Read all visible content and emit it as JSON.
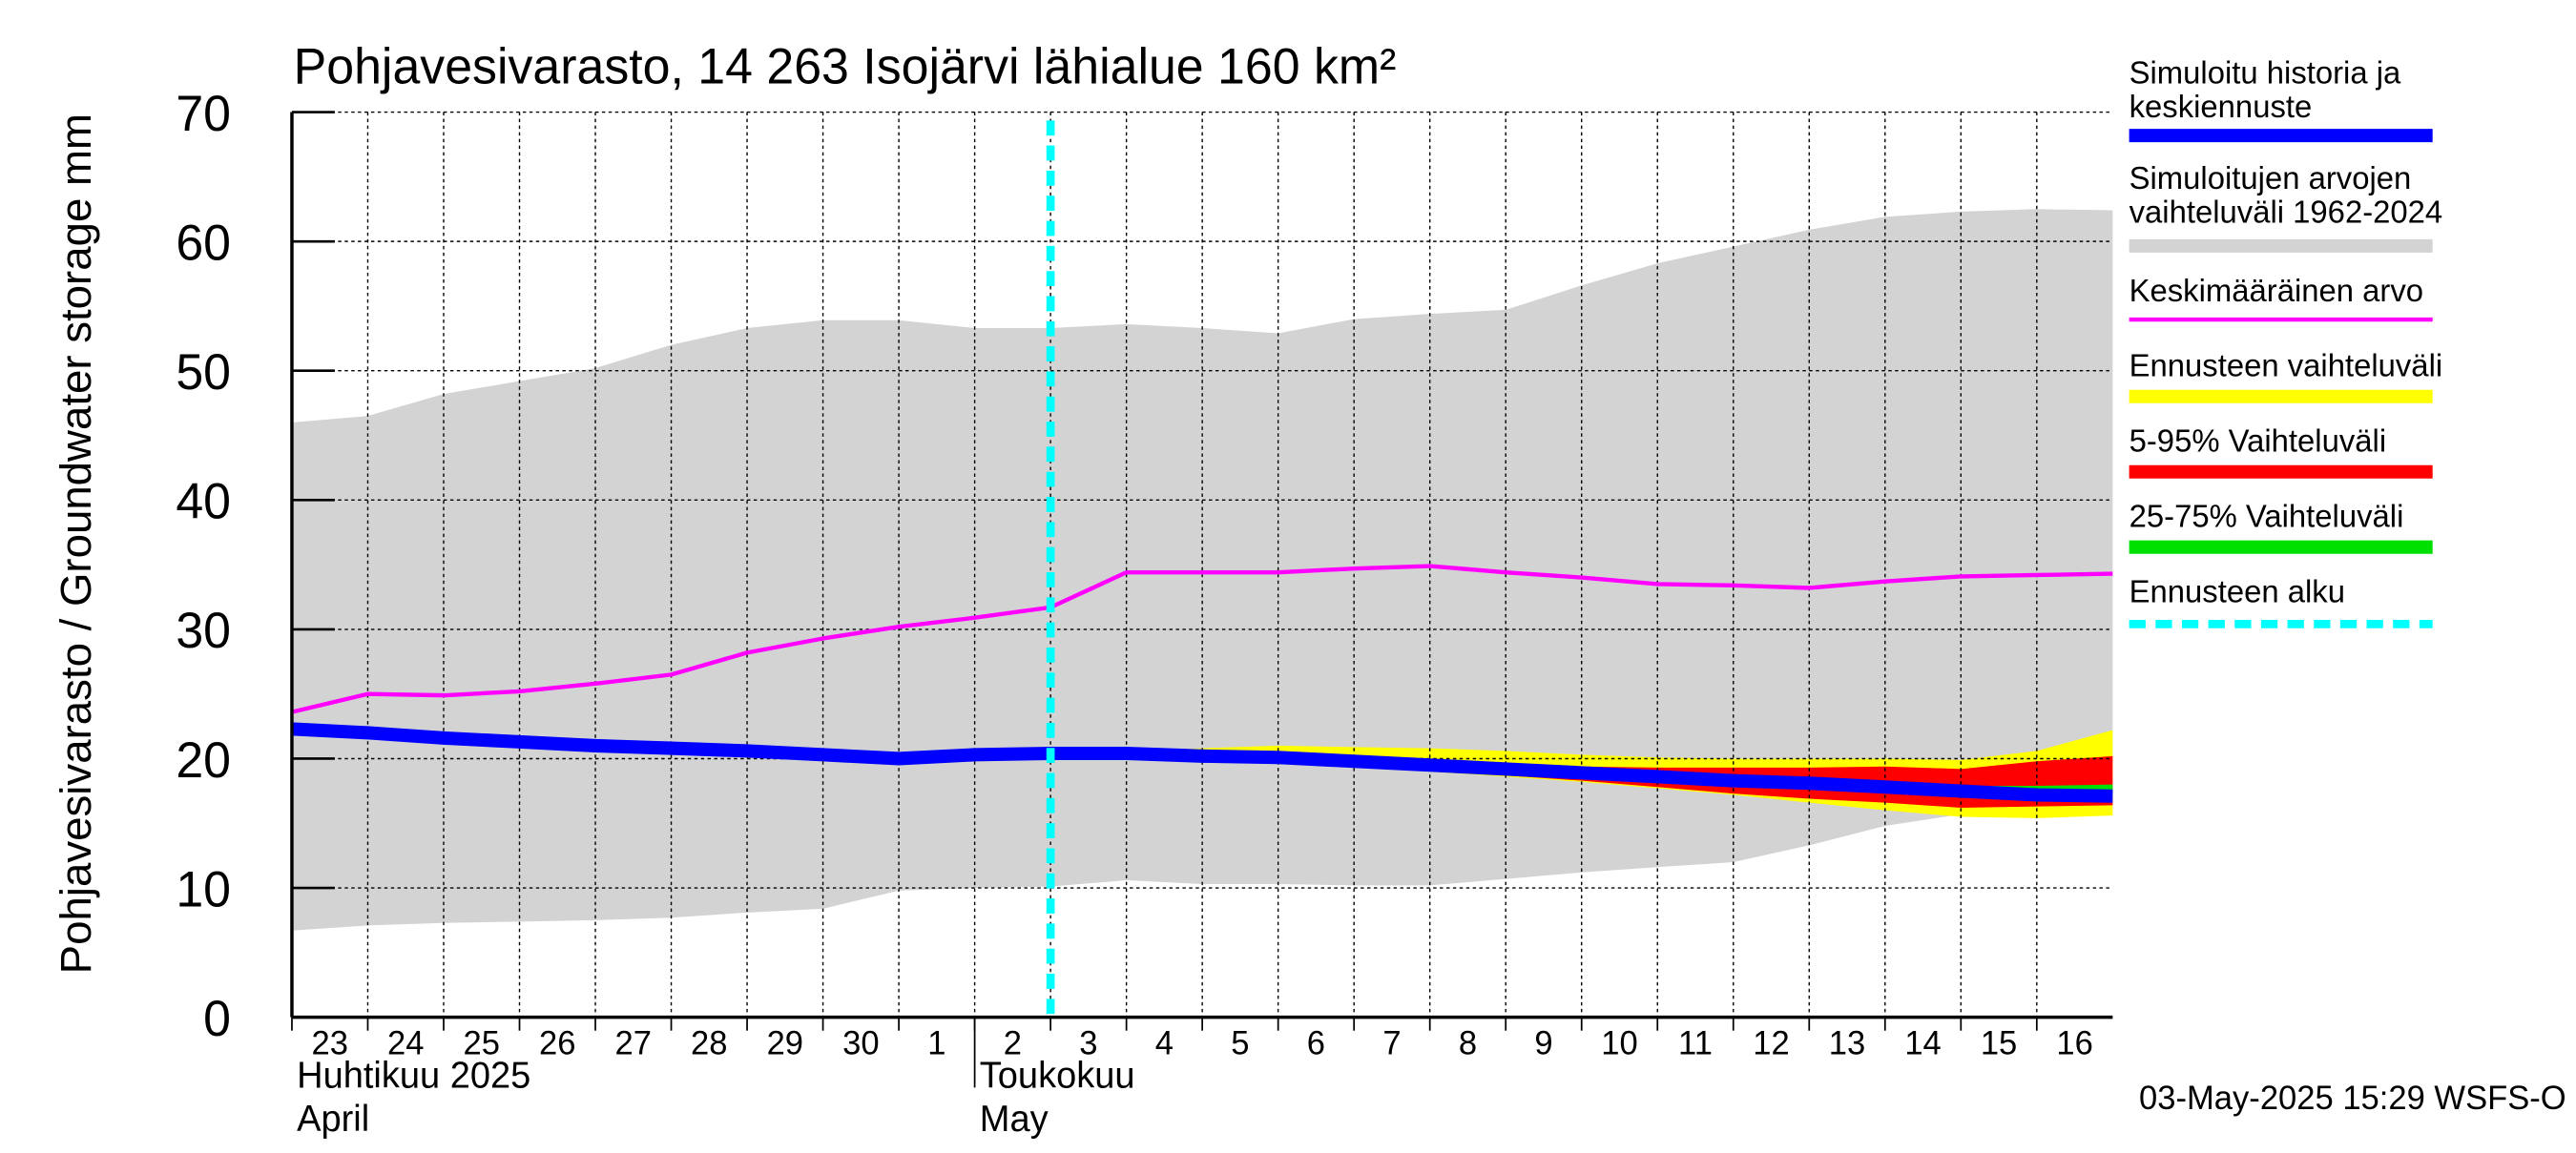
{
  "chart_data": {
    "type": "area",
    "title": "Pohjavesivarasto, 14 263 Isojärvi lähialue 160 km²",
    "ylabel": "Pohjavesivarasto / Groundwater storage   mm",
    "ylim": [
      0,
      70
    ],
    "yticks": [
      0,
      10,
      20,
      30,
      40,
      50,
      60,
      70
    ],
    "grid": true,
    "legend_position": "right",
    "x_dates": [
      "2025-04-23",
      "2025-04-24",
      "2025-04-25",
      "2025-04-26",
      "2025-04-27",
      "2025-04-28",
      "2025-04-29",
      "2025-04-30",
      "2025-05-01",
      "2025-05-02",
      "2025-05-03",
      "2025-05-04",
      "2025-05-05",
      "2025-05-06",
      "2025-05-07",
      "2025-05-08",
      "2025-05-09",
      "2025-05-10",
      "2025-05-11",
      "2025-05-12",
      "2025-05-13",
      "2025-05-14",
      "2025-05-15",
      "2025-05-16",
      "2025-05-17"
    ],
    "x_tick_labels": [
      "23",
      "24",
      "25",
      "26",
      "27",
      "28",
      "29",
      "30",
      "1",
      "2",
      "3",
      "4",
      "5",
      "6",
      "7",
      "8",
      "9",
      "10",
      "11",
      "12",
      "13",
      "14",
      "15",
      "16"
    ],
    "month_labels": [
      {
        "line1": "Huhtikuu  2025",
        "line2": "April",
        "start": "2025-04-23"
      },
      {
        "line1": "Toukokuu",
        "line2": "May",
        "start": "2025-05-02"
      }
    ],
    "forecast_start": "2025-05-03",
    "series": [
      {
        "name": "Simuloitujen arvojen vaihteluväli 1962-2024",
        "kind": "band",
        "color": "#d3d3d3",
        "x": [
          "2025-04-23",
          "2025-04-24",
          "2025-04-25",
          "2025-04-26",
          "2025-04-27",
          "2025-04-28",
          "2025-04-29",
          "2025-04-30",
          "2025-05-01",
          "2025-05-02",
          "2025-05-03",
          "2025-05-04",
          "2025-05-05",
          "2025-05-06",
          "2025-05-07",
          "2025-05-08",
          "2025-05-09",
          "2025-05-10",
          "2025-05-11",
          "2025-05-12",
          "2025-05-13",
          "2025-05-14",
          "2025-05-15",
          "2025-05-16",
          "2025-05-17"
        ],
        "upper": [
          46.0,
          46.5,
          48.2,
          49.2,
          50.2,
          52.0,
          53.3,
          53.9,
          53.9,
          53.3,
          53.3,
          53.6,
          53.3,
          52.9,
          54.0,
          54.4,
          54.7,
          56.6,
          58.3,
          59.6,
          60.9,
          61.9,
          62.3,
          62.5,
          62.4
        ],
        "lower": [
          6.7,
          7.1,
          7.3,
          7.4,
          7.5,
          7.7,
          8.1,
          8.4,
          9.8,
          10.0,
          10.1,
          10.6,
          10.3,
          10.3,
          10.2,
          10.2,
          10.7,
          11.2,
          11.6,
          12.0,
          13.3,
          14.8,
          15.7,
          16.0,
          16.2
        ]
      },
      {
        "name": "Ennusteen vaihteluväli",
        "kind": "band",
        "color": "#ffff00",
        "x": [
          "2025-05-03",
          "2025-05-04",
          "2025-05-05",
          "2025-05-06",
          "2025-05-07",
          "2025-05-08",
          "2025-05-09",
          "2025-05-10",
          "2025-05-11",
          "2025-05-12",
          "2025-05-13",
          "2025-05-14",
          "2025-05-15",
          "2025-05-16",
          "2025-05-17"
        ],
        "upper": [
          20.5,
          20.6,
          20.8,
          21.0,
          20.9,
          20.8,
          20.6,
          20.3,
          20.1,
          20.0,
          20.0,
          20.0,
          19.9,
          20.6,
          22.2
        ],
        "lower": [
          20.4,
          20.3,
          20.0,
          19.8,
          19.4,
          19.0,
          18.6,
          18.2,
          17.7,
          17.2,
          16.6,
          16.0,
          15.5,
          15.4,
          15.6
        ]
      },
      {
        "name": "5-95% Vaihteluväli",
        "kind": "band",
        "color": "#ff0000",
        "x": [
          "2025-05-03",
          "2025-05-04",
          "2025-05-05",
          "2025-05-06",
          "2025-05-07",
          "2025-05-08",
          "2025-05-09",
          "2025-05-10",
          "2025-05-11",
          "2025-05-12",
          "2025-05-13",
          "2025-05-14",
          "2025-05-15",
          "2025-05-16",
          "2025-05-17"
        ],
        "upper": [
          20.4,
          20.4,
          20.3,
          20.2,
          20.0,
          19.8,
          19.6,
          19.4,
          19.3,
          19.3,
          19.3,
          19.4,
          19.2,
          19.8,
          20.2
        ],
        "lower": [
          20.4,
          20.3,
          20.1,
          19.8,
          19.5,
          19.1,
          18.7,
          18.3,
          17.8,
          17.3,
          16.9,
          16.6,
          16.2,
          16.3,
          16.4
        ]
      },
      {
        "name": "25-75% Vaihteluväli",
        "kind": "band",
        "color": "#00e000",
        "x": [
          "2025-05-03",
          "2025-05-04",
          "2025-05-05",
          "2025-05-06",
          "2025-05-07",
          "2025-05-08",
          "2025-05-09",
          "2025-05-10",
          "2025-05-11",
          "2025-05-12",
          "2025-05-13",
          "2025-05-14",
          "2025-05-15",
          "2025-05-16",
          "2025-05-17"
        ],
        "upper": [
          20.4,
          20.4,
          20.2,
          20.1,
          19.9,
          19.6,
          19.3,
          19.0,
          18.7,
          18.5,
          18.3,
          18.1,
          17.9,
          17.9,
          18.0
        ],
        "lower": [
          20.4,
          20.3,
          20.1,
          19.9,
          19.6,
          19.3,
          19.0,
          18.7,
          18.4,
          18.1,
          17.9,
          17.6,
          17.3,
          17.1,
          17.1
        ]
      },
      {
        "name": "Keskimääräinen arvo",
        "kind": "line",
        "color": "#ff00ff",
        "width": 2.5,
        "x": [
          "2025-04-23",
          "2025-04-24",
          "2025-04-25",
          "2025-04-26",
          "2025-04-27",
          "2025-04-28",
          "2025-04-29",
          "2025-04-30",
          "2025-05-01",
          "2025-05-02",
          "2025-05-03",
          "2025-05-04",
          "2025-05-05",
          "2025-05-06",
          "2025-05-07",
          "2025-05-08",
          "2025-05-09",
          "2025-05-10",
          "2025-05-11",
          "2025-05-12",
          "2025-05-13",
          "2025-05-14",
          "2025-05-15",
          "2025-05-16",
          "2025-05-17"
        ],
        "values": [
          23.6,
          25.0,
          24.9,
          25.2,
          25.8,
          26.5,
          28.2,
          29.3,
          30.2,
          30.9,
          31.7,
          34.4,
          34.4,
          34.4,
          34.7,
          34.9,
          34.4,
          34.0,
          33.5,
          33.4,
          33.2,
          33.7,
          34.1,
          34.2,
          34.3
        ]
      },
      {
        "name": "Simuloitu historia ja keskiennuste",
        "kind": "line",
        "color": "#0000ff",
        "width": 8,
        "x": [
          "2025-04-23",
          "2025-04-24",
          "2025-04-25",
          "2025-04-26",
          "2025-04-27",
          "2025-04-28",
          "2025-04-29",
          "2025-04-30",
          "2025-05-01",
          "2025-05-02",
          "2025-05-03",
          "2025-05-04",
          "2025-05-05",
          "2025-05-06",
          "2025-05-07",
          "2025-05-08",
          "2025-05-09",
          "2025-05-10",
          "2025-05-11",
          "2025-05-12",
          "2025-05-13",
          "2025-05-14",
          "2025-05-15",
          "2025-05-16",
          "2025-05-17"
        ],
        "values": [
          22.3,
          22.0,
          21.6,
          21.3,
          21.0,
          20.8,
          20.6,
          20.3,
          20.0,
          20.3,
          20.4,
          20.4,
          20.2,
          20.1,
          19.8,
          19.5,
          19.2,
          18.9,
          18.6,
          18.3,
          18.1,
          17.8,
          17.5,
          17.2,
          17.1
        ]
      },
      {
        "name": "Ennusteen alku",
        "kind": "vline",
        "color": "#00ffff",
        "x": "2025-05-03"
      }
    ],
    "legend": [
      {
        "label": "Simuloitu historia ja keskiennuste",
        "color": "#0000ff",
        "style": "solid"
      },
      {
        "label": "Simuloitujen arvojen vaihteluväli 1962-2024",
        "color": "#d3d3d3",
        "style": "solid"
      },
      {
        "label": "Keskimääräinen arvo",
        "color": "#ff00ff",
        "style": "thin"
      },
      {
        "label": "Ennusteen vaihteluväli",
        "color": "#ffff00",
        "style": "solid"
      },
      {
        "label": "5-95% Vaihteluväli",
        "color": "#ff0000",
        "style": "solid"
      },
      {
        "label": "25-75% Vaihteluväli",
        "color": "#00e000",
        "style": "solid"
      },
      {
        "label": "Ennusteen alku",
        "color": "#00ffff",
        "style": "dashed"
      }
    ],
    "footer": "03-May-2025 15:29 WSFS-O"
  }
}
